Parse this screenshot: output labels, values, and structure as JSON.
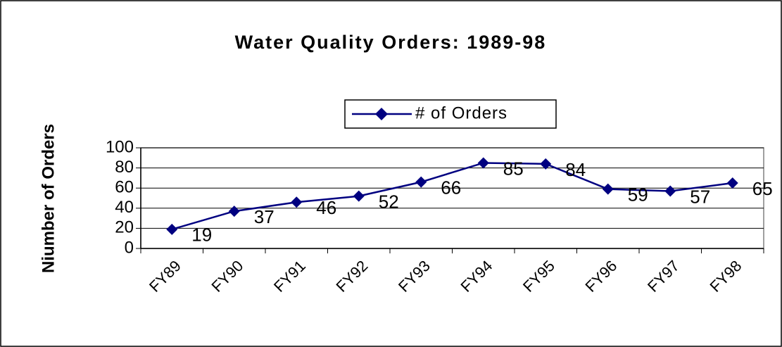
{
  "chart_data": {
    "type": "line",
    "title": "Water Quality Orders: 1989-98",
    "y_label": "Niumber of Orders",
    "categories": [
      "FY89",
      "FY90",
      "FY91",
      "FY92",
      "FY93",
      "FY94",
      "FY95",
      "FY96",
      "FY97",
      "FY98"
    ],
    "series": [
      {
        "name": "# of Orders",
        "color": "#000080",
        "values": [
          19,
          37,
          46,
          52,
          66,
          85,
          84,
          59,
          57,
          65
        ]
      }
    ],
    "ylim": [
      0,
      100
    ],
    "yticks": [
      0,
      20,
      40,
      60,
      80,
      100
    ],
    "grid": true,
    "legend": "top"
  }
}
